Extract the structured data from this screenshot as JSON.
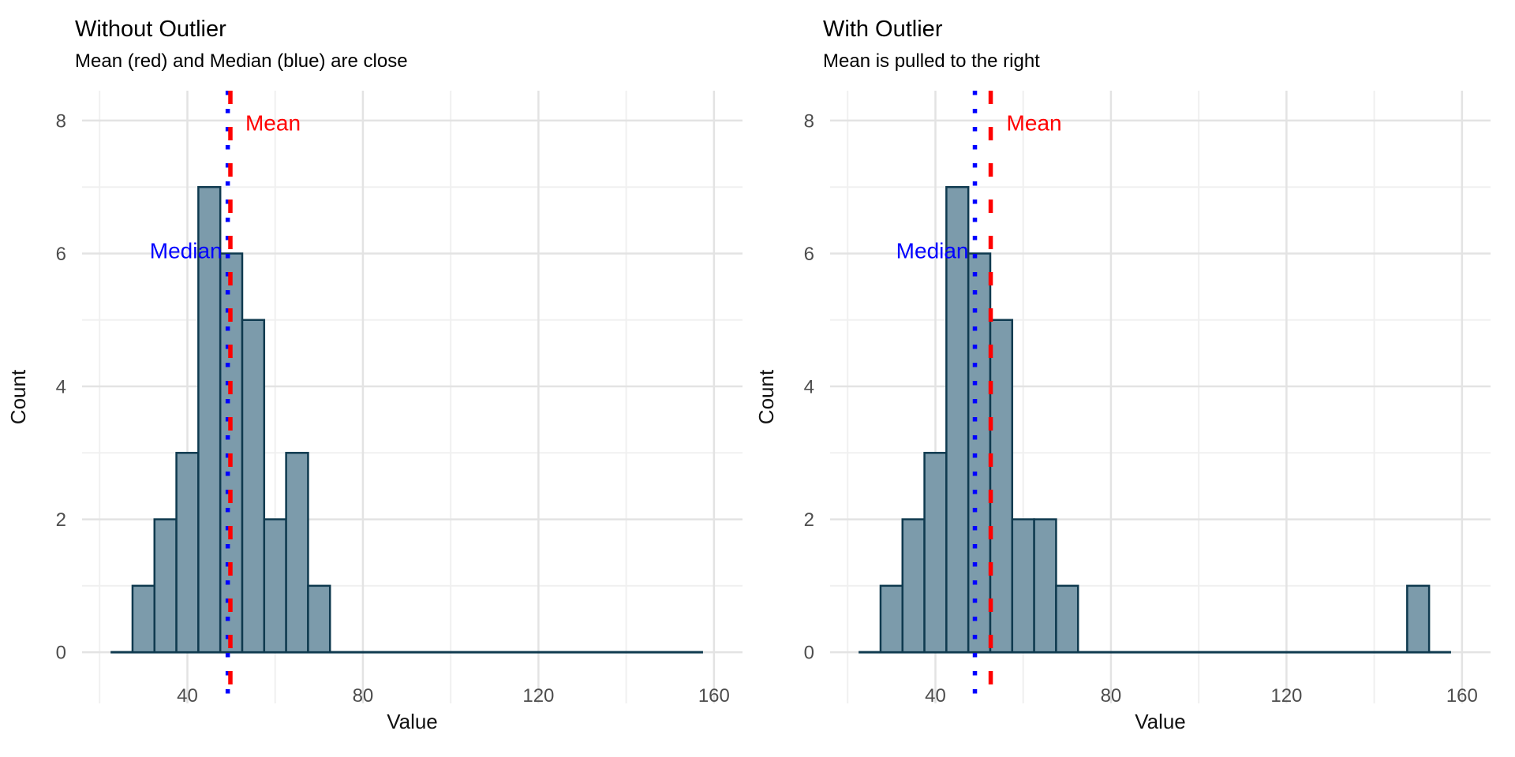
{
  "figure": {
    "background": "#ffffff",
    "kind": "faceted-histogram-comparison"
  },
  "style": {
    "bar_fill": "#7c9bab",
    "bar_stroke": "#0f3a4f",
    "mean_color": "#ff0000",
    "median_color": "#0000ff",
    "grid_major": "#e3e3e3",
    "grid_minor": "#f0f0f0",
    "tick_label_color": "#4d4d4d",
    "axis_title_color": "#111111",
    "title_color": "#000000",
    "subtitle_color": "#000000"
  },
  "chart_data": [
    {
      "type": "bar",
      "subtype": "histogram",
      "title": "Without Outlier",
      "subtitle": "Mean (red) and Median (blue) are close",
      "xlabel": "Value",
      "ylabel": "Count",
      "grid": true,
      "legend_position": "none",
      "bin_width": 5,
      "bin_range": [
        22.5,
        157.5
      ],
      "bin_centers": [
        30,
        35,
        40,
        45,
        50,
        55,
        60,
        65,
        70
      ],
      "counts": [
        1,
        2,
        3,
        7,
        6,
        5,
        2,
        3,
        1
      ],
      "x_ticks": [
        40,
        80,
        120,
        160
      ],
      "x_minor_ticks": [
        20,
        60,
        100,
        140
      ],
      "y_ticks": [
        0,
        2,
        4,
        6,
        8
      ],
      "y_minor_ticks": [
        1,
        3,
        5,
        7
      ],
      "xlim": [
        16,
        166.5
      ],
      "ylim": [
        -0.77,
        8.45
      ],
      "mean": 49.8,
      "median": 49.2,
      "labels": [
        {
          "text": "Mean",
          "anchor": "mean",
          "align": "start",
          "dx": 19,
          "y_count": 7.85,
          "color": "mean_color"
        },
        {
          "text": "Median",
          "anchor": "median",
          "align": "end",
          "dx": -7,
          "y_count": 5.93,
          "color": "median_color"
        }
      ]
    },
    {
      "type": "bar",
      "subtype": "histogram",
      "title": "With Outlier",
      "subtitle": "Mean is pulled to the right",
      "xlabel": "Value",
      "ylabel": "Count",
      "grid": true,
      "legend_position": "none",
      "bin_width": 5,
      "bin_range": [
        22.5,
        157.5
      ],
      "bin_centers": [
        30,
        35,
        40,
        45,
        50,
        55,
        60,
        65,
        70,
        150
      ],
      "counts": [
        1,
        2,
        3,
        7,
        6,
        5,
        2,
        2,
        1,
        1
      ],
      "x_ticks": [
        40,
        80,
        120,
        160
      ],
      "x_minor_ticks": [
        20,
        60,
        100,
        140
      ],
      "y_ticks": [
        0,
        2,
        4,
        6,
        8
      ],
      "y_minor_ticks": [
        1,
        3,
        5,
        7
      ],
      "xlim": [
        16,
        166.5
      ],
      "ylim": [
        -0.77,
        8.45
      ],
      "mean": 52.6,
      "median": 49.0,
      "labels": [
        {
          "text": "Mean",
          "anchor": "mean",
          "align": "start",
          "dx": 20,
          "y_count": 7.85,
          "color": "mean_color"
        },
        {
          "text": "Median",
          "anchor": "median",
          "align": "end",
          "dx": -8,
          "y_count": 5.93,
          "color": "median_color"
        }
      ]
    }
  ]
}
